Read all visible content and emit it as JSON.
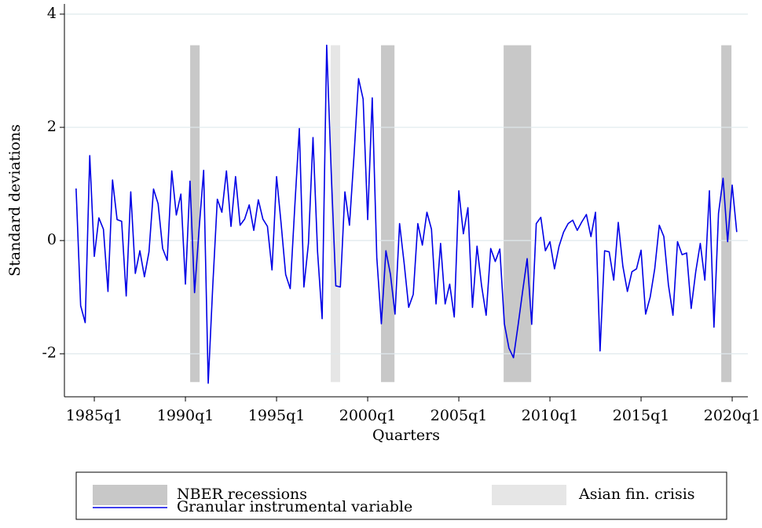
{
  "chart_data": {
    "type": "line",
    "xlabel": "Quarters",
    "ylabel": "Standard deviations",
    "xlim": [
      1983.36,
      2020.86
    ],
    "ylim": [
      -2.76,
      4.18
    ],
    "xticks": [
      {
        "value": 1985,
        "label": "1985q1"
      },
      {
        "value": 1990,
        "label": "1990q1"
      },
      {
        "value": 1995,
        "label": "1995q1"
      },
      {
        "value": 2000,
        "label": "2000q1"
      },
      {
        "value": 2005,
        "label": "2005q1"
      },
      {
        "value": 2010,
        "label": "2010q1"
      },
      {
        "value": 2015,
        "label": "2015q1"
      },
      {
        "value": 2020,
        "label": "2020q1"
      }
    ],
    "yticks": [
      -2,
      0,
      2,
      4
    ],
    "grid": true,
    "shaded_regions": [
      {
        "name": "NBER recessions",
        "color": "#c8c8c8",
        "ylim": [
          -2.5,
          3.45
        ],
        "spans": [
          [
            1990.26,
            1990.78
          ],
          [
            2000.73,
            2001.47
          ],
          [
            2007.46,
            2008.97
          ],
          [
            2019.4,
            2019.96
          ]
        ]
      },
      {
        "name": "Asian fin. crisis",
        "color": "#e6e6e6",
        "ylim": [
          -2.5,
          3.45
        ],
        "spans": [
          [
            1997.97,
            1998.49
          ]
        ]
      }
    ],
    "x": [
      1984,
      1984.25,
      1984.5,
      1984.75,
      1985,
      1985.25,
      1985.5,
      1985.75,
      1986,
      1986.25,
      1986.5,
      1986.75,
      1987,
      1987.25,
      1987.5,
      1987.75,
      1988,
      1988.25,
      1988.5,
      1988.75,
      1989,
      1989.25,
      1989.5,
      1989.75,
      1990,
      1990.25,
      1990.5,
      1990.75,
      1991,
      1991.25,
      1991.5,
      1991.75,
      1992,
      1992.25,
      1992.5,
      1992.75,
      1993,
      1993.25,
      1993.5,
      1993.75,
      1994,
      1994.25,
      1994.5,
      1994.75,
      1995,
      1995.25,
      1995.5,
      1995.75,
      1996,
      1996.25,
      1996.5,
      1996.75,
      1997,
      1997.25,
      1997.5,
      1997.75,
      1998,
      1998.25,
      1998.5,
      1998.75,
      1999,
      1999.25,
      1999.5,
      1999.75,
      2000,
      2000.25,
      2000.5,
      2000.75,
      2001,
      2001.25,
      2001.5,
      2001.75,
      2002,
      2002.25,
      2002.5,
      2002.75,
      2003,
      2003.25,
      2003.5,
      2003.75,
      2004,
      2004.25,
      2004.5,
      2004.75,
      2005,
      2005.25,
      2005.5,
      2005.75,
      2006,
      2006.25,
      2006.5,
      2006.75,
      2007,
      2007.25,
      2007.5,
      2007.75,
      2008,
      2008.25,
      2008.5,
      2008.75,
      2009,
      2009.25,
      2009.5,
      2009.75,
      2010,
      2010.25,
      2010.5,
      2010.75,
      2011,
      2011.25,
      2011.5,
      2011.75,
      2012,
      2012.25,
      2012.5,
      2012.75,
      2013,
      2013.25,
      2013.5,
      2013.75,
      2014,
      2014.25,
      2014.5,
      2014.75,
      2015,
      2015.25,
      2015.5,
      2015.75,
      2016,
      2016.25,
      2016.5,
      2016.75,
      2017,
      2017.25,
      2017.5,
      2017.75,
      2018,
      2018.25,
      2018.5,
      2018.75,
      2019,
      2019.25,
      2019.5,
      2019.75,
      2020,
      2020.25
    ],
    "series": [
      {
        "name": "Granular instrumental variable",
        "color": "#0000e6",
        "values": [
          0.92,
          -1.15,
          -1.45,
          1.5,
          -0.28,
          0.4,
          0.2,
          -0.9,
          1.07,
          0.37,
          0.34,
          -0.98,
          0.86,
          -0.58,
          -0.18,
          -0.64,
          -0.2,
          0.91,
          0.65,
          -0.14,
          -0.35,
          1.23,
          0.45,
          0.82,
          -0.77,
          1.05,
          -0.92,
          0.2,
          1.24,
          -2.52,
          -0.8,
          0.73,
          0.5,
          1.23,
          0.25,
          1.13,
          0.27,
          0.38,
          0.63,
          0.18,
          0.72,
          0.38,
          0.25,
          -0.52,
          1.13,
          0.3,
          -0.6,
          -0.85,
          0.6,
          1.98,
          -0.82,
          -0.05,
          1.82,
          -0.2,
          -1.38,
          3.45,
          1.2,
          -0.8,
          -0.82,
          0.86,
          0.27,
          1.5,
          2.86,
          2.5,
          0.37,
          2.52,
          -0.3,
          -1.47,
          -0.18,
          -0.6,
          -1.3,
          0.3,
          -0.4,
          -1.18,
          -0.95,
          0.3,
          -0.08,
          0.5,
          0.2,
          -1.12,
          -0.05,
          -1.12,
          -0.77,
          -1.35,
          0.88,
          0.12,
          0.58,
          -1.18,
          -0.1,
          -0.8,
          -1.32,
          -0.14,
          -0.37,
          -0.15,
          -1.47,
          -1.9,
          -2.07,
          -1.5,
          -0.9,
          -0.32,
          -1.48,
          0.3,
          0.41,
          -0.18,
          -0.02,
          -0.5,
          -0.1,
          0.15,
          0.3,
          0.36,
          0.18,
          0.33,
          0.46,
          0.07,
          0.5,
          -1.95,
          -0.18,
          -0.2,
          -0.7,
          0.32,
          -0.45,
          -0.9,
          -0.55,
          -0.5,
          -0.17,
          -1.3,
          -1.0,
          -0.5,
          0.27,
          0.07,
          -0.78,
          -1.32,
          -0.02,
          -0.25,
          -0.22,
          -1.2,
          -0.55,
          -0.05,
          -0.7,
          0.88,
          -1.53,
          0.48,
          1.1,
          -0.02,
          0.98,
          0.15
        ]
      }
    ]
  }
}
